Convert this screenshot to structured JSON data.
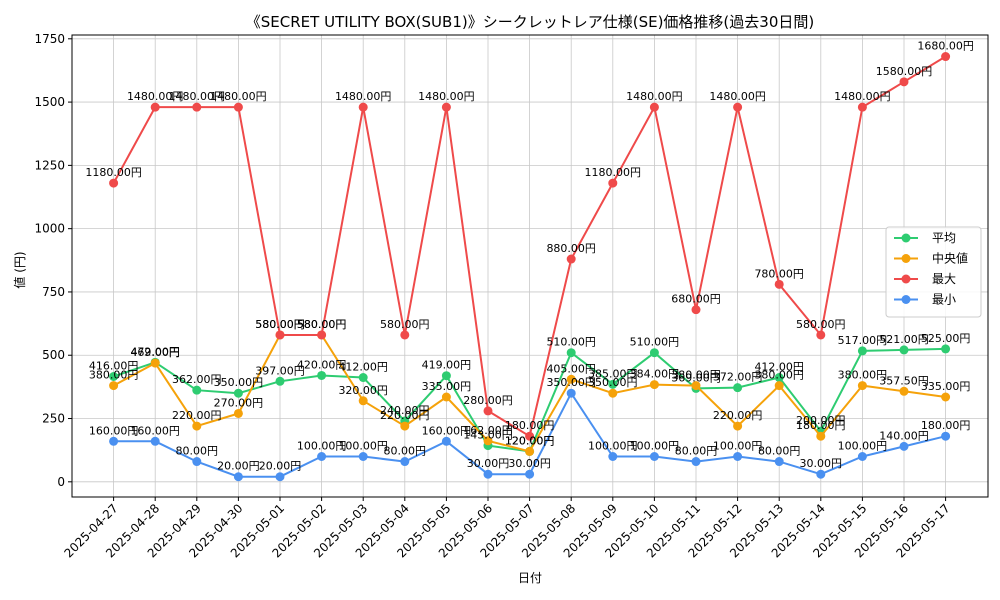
{
  "chart_data": {
    "type": "line",
    "title": "《SECRET UTILITY BOX(SUB1)》シークレットレア仕様(SE)価格推移(過去30日間)",
    "xlabel": "日付",
    "ylabel": "値 (円)",
    "ylim": [
      -60,
      1765
    ],
    "yticks": [
      0,
      250,
      500,
      750,
      1000,
      1250,
      1500,
      1750
    ],
    "grid": true,
    "legend_position": "right",
    "label_suffix": "円",
    "categories": [
      "2025-04-27",
      "2025-04-28",
      "2025-04-29",
      "2025-04-30",
      "2025-05-01",
      "2025-05-02",
      "2025-05-03",
      "2025-05-04",
      "2025-05-05",
      "2025-05-06",
      "2025-05-07",
      "2025-05-08",
      "2025-05-09",
      "2025-05-10",
      "2025-05-11",
      "2025-05-12",
      "2025-05-13",
      "2025-05-14",
      "2025-05-15",
      "2025-05-16",
      "2025-05-17"
    ],
    "series": [
      {
        "name": "平均",
        "color": "#2ecc71",
        "values": [
          416,
          472,
          362,
          350,
          397,
          420,
          412,
          240,
          419,
          143,
          120,
          510,
          385,
          510,
          369,
          372,
          412,
          200,
          517,
          521,
          525
        ]
      },
      {
        "name": "中央値",
        "color": "#f5a20a",
        "values": [
          380,
          469,
          220,
          270,
          580,
          580,
          320,
          220,
          335,
          162,
          120,
          405,
          350,
          384,
          380,
          220,
          380,
          180,
          380,
          357.5,
          335
        ]
      },
      {
        "name": "最大",
        "color": "#ef4a4a",
        "values": [
          1180,
          1480,
          1480,
          1480,
          580,
          580,
          1480,
          580,
          1480,
          280,
          180,
          880,
          1180,
          1480,
          680,
          1480,
          780,
          580,
          1480,
          1580,
          1680
        ]
      },
      {
        "name": "最小",
        "color": "#4a90f0",
        "values": [
          160,
          160,
          80,
          20,
          20,
          100,
          100,
          80,
          160,
          30,
          30,
          350,
          100,
          100,
          80,
          100,
          80,
          30,
          100,
          140,
          180
        ]
      }
    ]
  }
}
